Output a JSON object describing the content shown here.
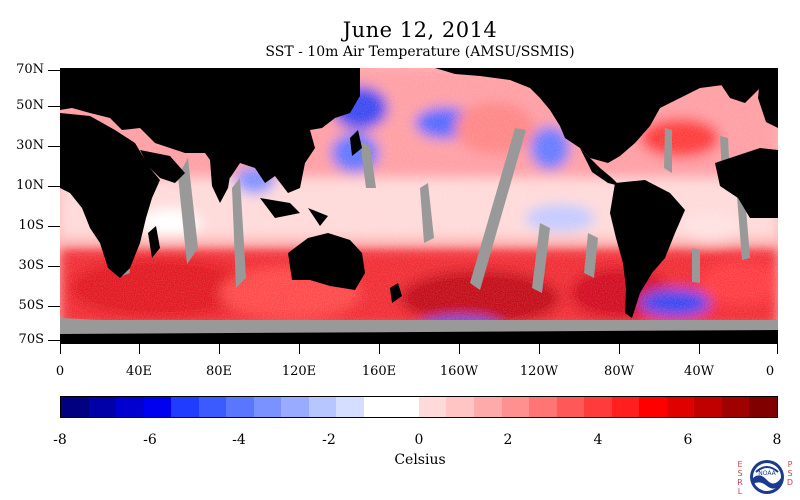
{
  "title": "June 12, 2014",
  "subtitle": "SST - 10m Air Temperature (AMSU/SSMIS)",
  "map": {
    "lat_labels": [
      "70N",
      "50N",
      "30N",
      "10N",
      "10S",
      "30S",
      "50S",
      "70S"
    ],
    "lon_labels": [
      "0",
      "40E",
      "80E",
      "120E",
      "160E",
      "160W",
      "120W",
      "80W",
      "40W",
      "0"
    ],
    "colors": {
      "land": "#000000",
      "missing": "#999999",
      "warm": "#e8101a",
      "cool": "#2a3cf0"
    }
  },
  "colorbar": {
    "tick_labels": [
      "-8",
      "-6",
      "-4",
      "-2",
      "0",
      "2",
      "4",
      "6",
      "8"
    ],
    "units": "Celsius",
    "colors": [
      "#000080",
      "#0000a8",
      "#0000d0",
      "#0000f0",
      "#1f3cff",
      "#3b5bff",
      "#5a76ff",
      "#7a92ff",
      "#98abff",
      "#b8c6ff",
      "#d6deff",
      "#ffffff",
      "#ffffff",
      "#ffdada",
      "#ffc4c4",
      "#ffaaaa",
      "#ff9090",
      "#ff7474",
      "#ff5858",
      "#ff3b3b",
      "#ff1f1f",
      "#ff0000",
      "#e00000",
      "#c00000",
      "#a00000",
      "#800000"
    ]
  },
  "logo": {
    "name": "noaa-logo",
    "left_text": "ESRL",
    "right_text": "PSD",
    "center_text": "NOAA"
  }
}
